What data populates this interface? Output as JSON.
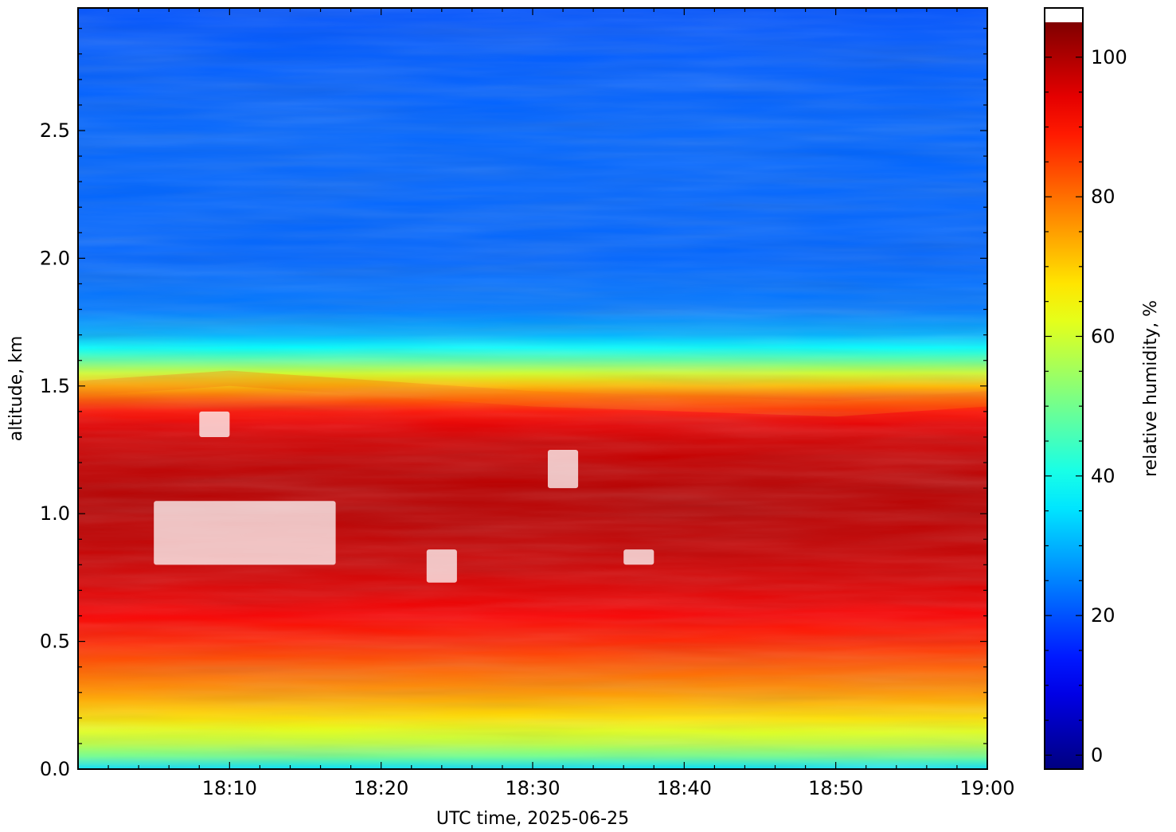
{
  "chart_data": {
    "type": "heatmap",
    "title": "",
    "xlabel": "UTC time,  2025-06-25",
    "ylabel": "altitude, km",
    "x_range": [
      "18:00",
      "19:00"
    ],
    "x_ticks": [
      "18:10",
      "18:20",
      "18:30",
      "18:40",
      "18:50",
      "19:00"
    ],
    "y_range": [
      0.0,
      2.98
    ],
    "y_ticks": [
      "0.0",
      "0.5",
      "1.0",
      "1.5",
      "2.0",
      "2.5"
    ],
    "colorbar": {
      "label": "relative humidity, %",
      "range": [
        -2,
        105
      ],
      "ticks": [
        "0",
        "20",
        "40",
        "60",
        "80",
        "100"
      ],
      "colormap": "jet",
      "over_color": "#ffffff",
      "under_color": "#000000"
    },
    "profile": {
      "altitude_km": [
        0.0,
        0.05,
        0.1,
        0.15,
        0.2,
        0.3,
        0.4,
        0.5,
        0.6,
        0.7,
        0.8,
        0.9,
        1.0,
        1.1,
        1.2,
        1.3,
        1.35,
        1.4,
        1.45,
        1.5,
        1.55,
        1.6,
        1.65,
        1.7,
        1.8,
        2.0,
        2.2,
        2.5,
        2.8,
        2.98
      ],
      "rh_percent": [
        35,
        50,
        58,
        62,
        68,
        76,
        82,
        88,
        92,
        95,
        97,
        98,
        99,
        99,
        98,
        96,
        94,
        90,
        82,
        72,
        60,
        48,
        38,
        30,
        24,
        22,
        22,
        22,
        21,
        20
      ]
    },
    "top_ml_km": {
      "time": [
        "18:00",
        "18:10",
        "18:20",
        "18:30",
        "18:40",
        "18:50",
        "19:00"
      ],
      "value": [
        1.46,
        1.5,
        1.46,
        1.42,
        1.4,
        1.38,
        1.42
      ]
    },
    "supersaturated_regions": [
      {
        "t0": "18:05",
        "t1": "18:17",
        "alt0_km": 0.8,
        "alt1_km": 1.05
      },
      {
        "t0": "18:08",
        "t1": "18:10",
        "alt0_km": 1.3,
        "alt1_km": 1.4
      },
      {
        "t0": "18:23",
        "t1": "18:25",
        "alt0_km": 0.73,
        "alt1_km": 0.86
      },
      {
        "t0": "18:31",
        "t1": "18:33",
        "alt0_km": 1.1,
        "alt1_km": 1.25
      },
      {
        "t0": "18:36",
        "t1": "18:38",
        "alt0_km": 0.8,
        "alt1_km": 0.86
      }
    ]
  }
}
